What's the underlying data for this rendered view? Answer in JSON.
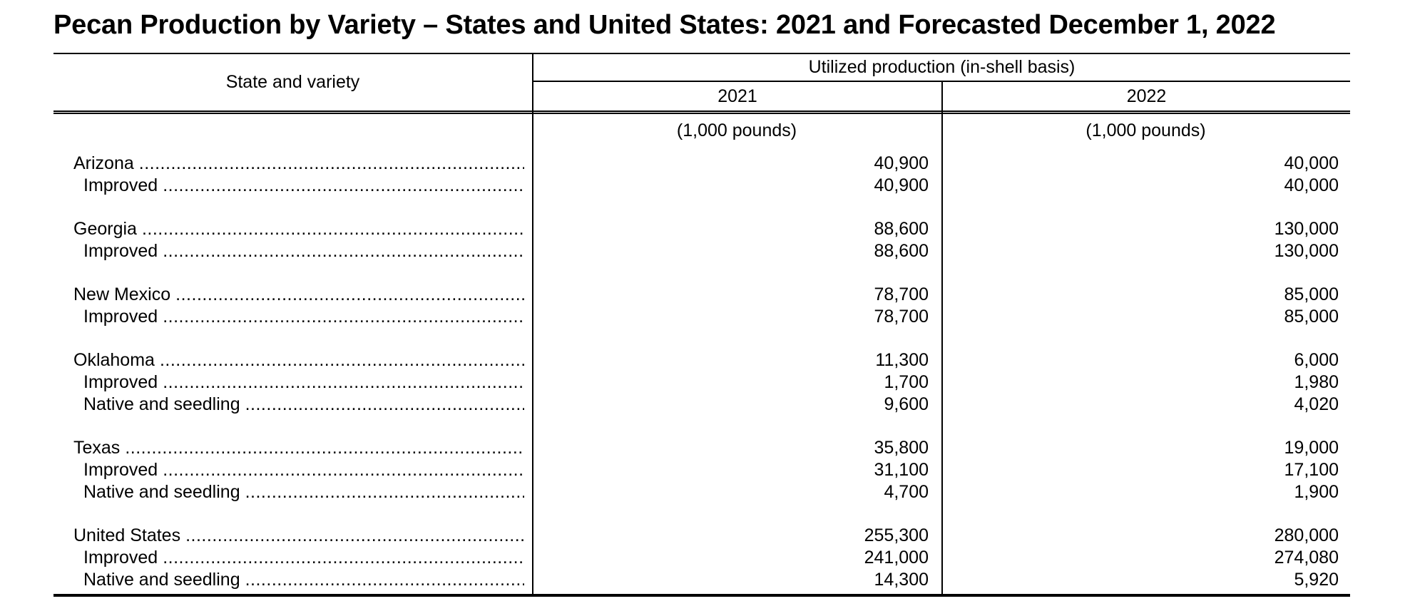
{
  "title": "Pecan Production by Variety – States and United States: 2021 and Forecasted December 1, 2022",
  "colors": {
    "text": "#000000",
    "rules": "#000000",
    "background": "#ffffff"
  },
  "table": {
    "corner_header": "State and variety",
    "span_header": "Utilized production (in-shell basis)",
    "col_headers": [
      "2021",
      "2022"
    ],
    "unit_row": [
      "(1,000 pounds)",
      "(1,000 pounds)"
    ],
    "groups": [
      {
        "rows": [
          {
            "label": "Arizona",
            "indent": 0,
            "values": [
              "40,900",
              "40,000"
            ]
          },
          {
            "label": "Improved",
            "indent": 1,
            "values": [
              "40,900",
              "40,000"
            ]
          }
        ]
      },
      {
        "rows": [
          {
            "label": "Georgia",
            "indent": 0,
            "values": [
              "88,600",
              "130,000"
            ]
          },
          {
            "label": "Improved",
            "indent": 1,
            "values": [
              "88,600",
              "130,000"
            ]
          }
        ]
      },
      {
        "rows": [
          {
            "label": "New Mexico",
            "indent": 0,
            "values": [
              "78,700",
              "85,000"
            ]
          },
          {
            "label": "Improved",
            "indent": 1,
            "values": [
              "78,700",
              "85,000"
            ]
          }
        ]
      },
      {
        "rows": [
          {
            "label": "Oklahoma",
            "indent": 0,
            "values": [
              "11,300",
              "6,000"
            ]
          },
          {
            "label": "Improved",
            "indent": 1,
            "values": [
              "1,700",
              "1,980"
            ]
          },
          {
            "label": "Native and seedling",
            "indent": 1,
            "values": [
              "9,600",
              "4,020"
            ]
          }
        ]
      },
      {
        "rows": [
          {
            "label": "Texas",
            "indent": 0,
            "values": [
              "35,800",
              "19,000"
            ]
          },
          {
            "label": "Improved",
            "indent": 1,
            "values": [
              "31,100",
              "17,100"
            ]
          },
          {
            "label": "Native and seedling",
            "indent": 1,
            "values": [
              "4,700",
              "1,900"
            ]
          }
        ]
      },
      {
        "rows": [
          {
            "label": "United States",
            "indent": 0,
            "values": [
              "255,300",
              "280,000"
            ]
          },
          {
            "label": "Improved",
            "indent": 1,
            "values": [
              "241,000",
              "274,080"
            ]
          },
          {
            "label": "Native and seedling",
            "indent": 1,
            "values": [
              "14,300",
              "5,920"
            ]
          }
        ]
      }
    ]
  }
}
